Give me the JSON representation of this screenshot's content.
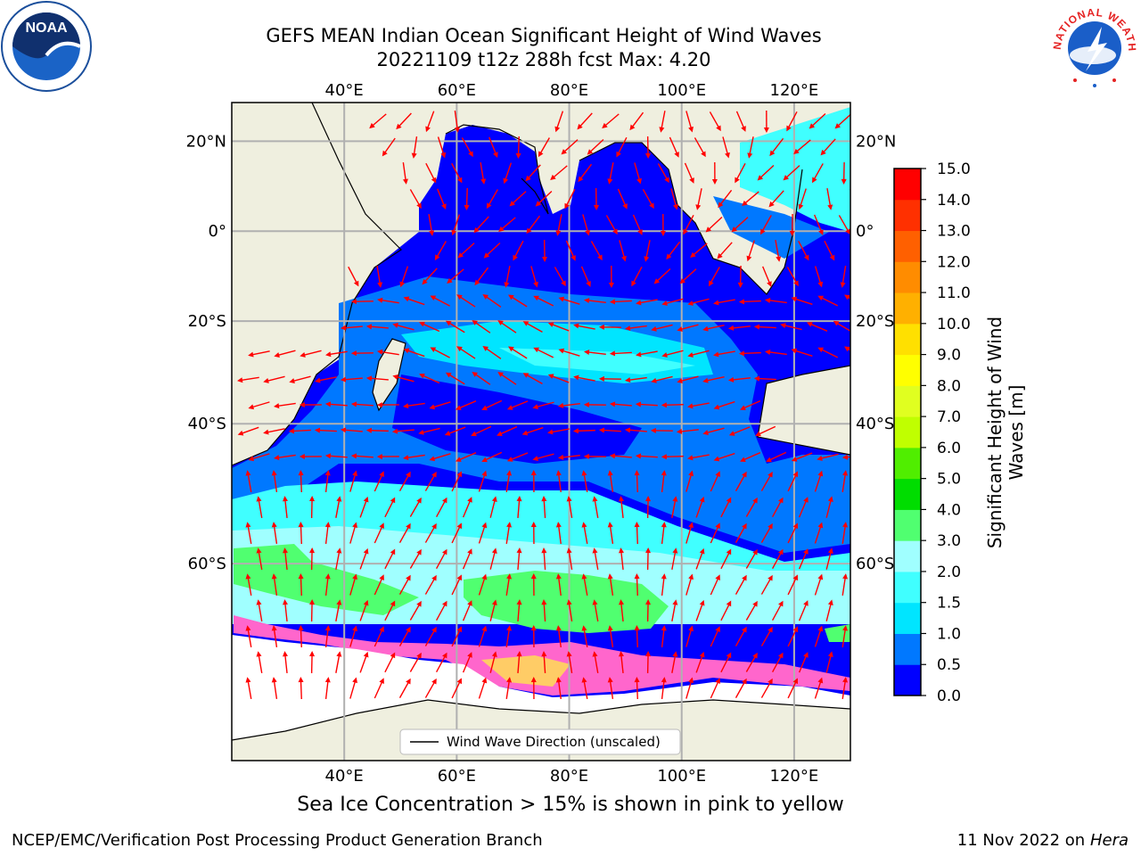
{
  "title_line1": "GEFS MEAN Indian Ocean Significant Height of Wind Waves",
  "title_line2": "20221109 t12z 288h fcst   Max: 4.20",
  "map": {
    "lon_range": [
      20,
      130
    ],
    "lat_range": [
      -76,
      28
    ],
    "lon_ticks": [
      40,
      60,
      80,
      100,
      120
    ],
    "lon_labels": [
      "40°E",
      "60°E",
      "80°E",
      "100°E",
      "120°E"
    ],
    "lat_ticks": [
      20,
      0,
      -20,
      -40,
      -60
    ],
    "lat_labels": [
      "20°N",
      "0°",
      "20°S",
      "40°S",
      "60°S"
    ],
    "grid": true,
    "land_color": "#efefdf",
    "ocean_base_color": "#0000ff",
    "arrow_color": "#ff0000"
  },
  "legend": {
    "label": "Wind Wave Direction (unscaled)",
    "placement": "lower-center"
  },
  "colorbar": {
    "label_line1": "Significant Height of Wind",
    "label_line2": "Waves [m]",
    "ticks": [
      "0.0",
      "0.5",
      "1.0",
      "1.5",
      "2.0",
      "3.0",
      "4.0",
      "5.0",
      "6.0",
      "7.0",
      "8.0",
      "9.0",
      "10.0",
      "11.0",
      "12.0",
      "13.0",
      "14.0",
      "15.0"
    ],
    "colors": [
      "#0000ff",
      "#0078ff",
      "#00e5ff",
      "#40ffff",
      "#a0ffff",
      "#50ff70",
      "#00dd00",
      "#50ee00",
      "#c0ff00",
      "#e0ff20",
      "#ffff00",
      "#ffe000",
      "#ffb000",
      "#ff8c00",
      "#ff6000",
      "#ff3000",
      "#ff0000"
    ]
  },
  "note": "Sea Ice Concentration > 15% is shown in pink to yellow",
  "footer_left": "NCEP/EMC/Verification Post Processing Product Generation Branch",
  "footer_right_date": "11 Nov 2022 on",
  "footer_right_host": "Hera",
  "logos": {
    "left": "NOAA",
    "right": "NATIONAL WEATHER SERVICE"
  }
}
